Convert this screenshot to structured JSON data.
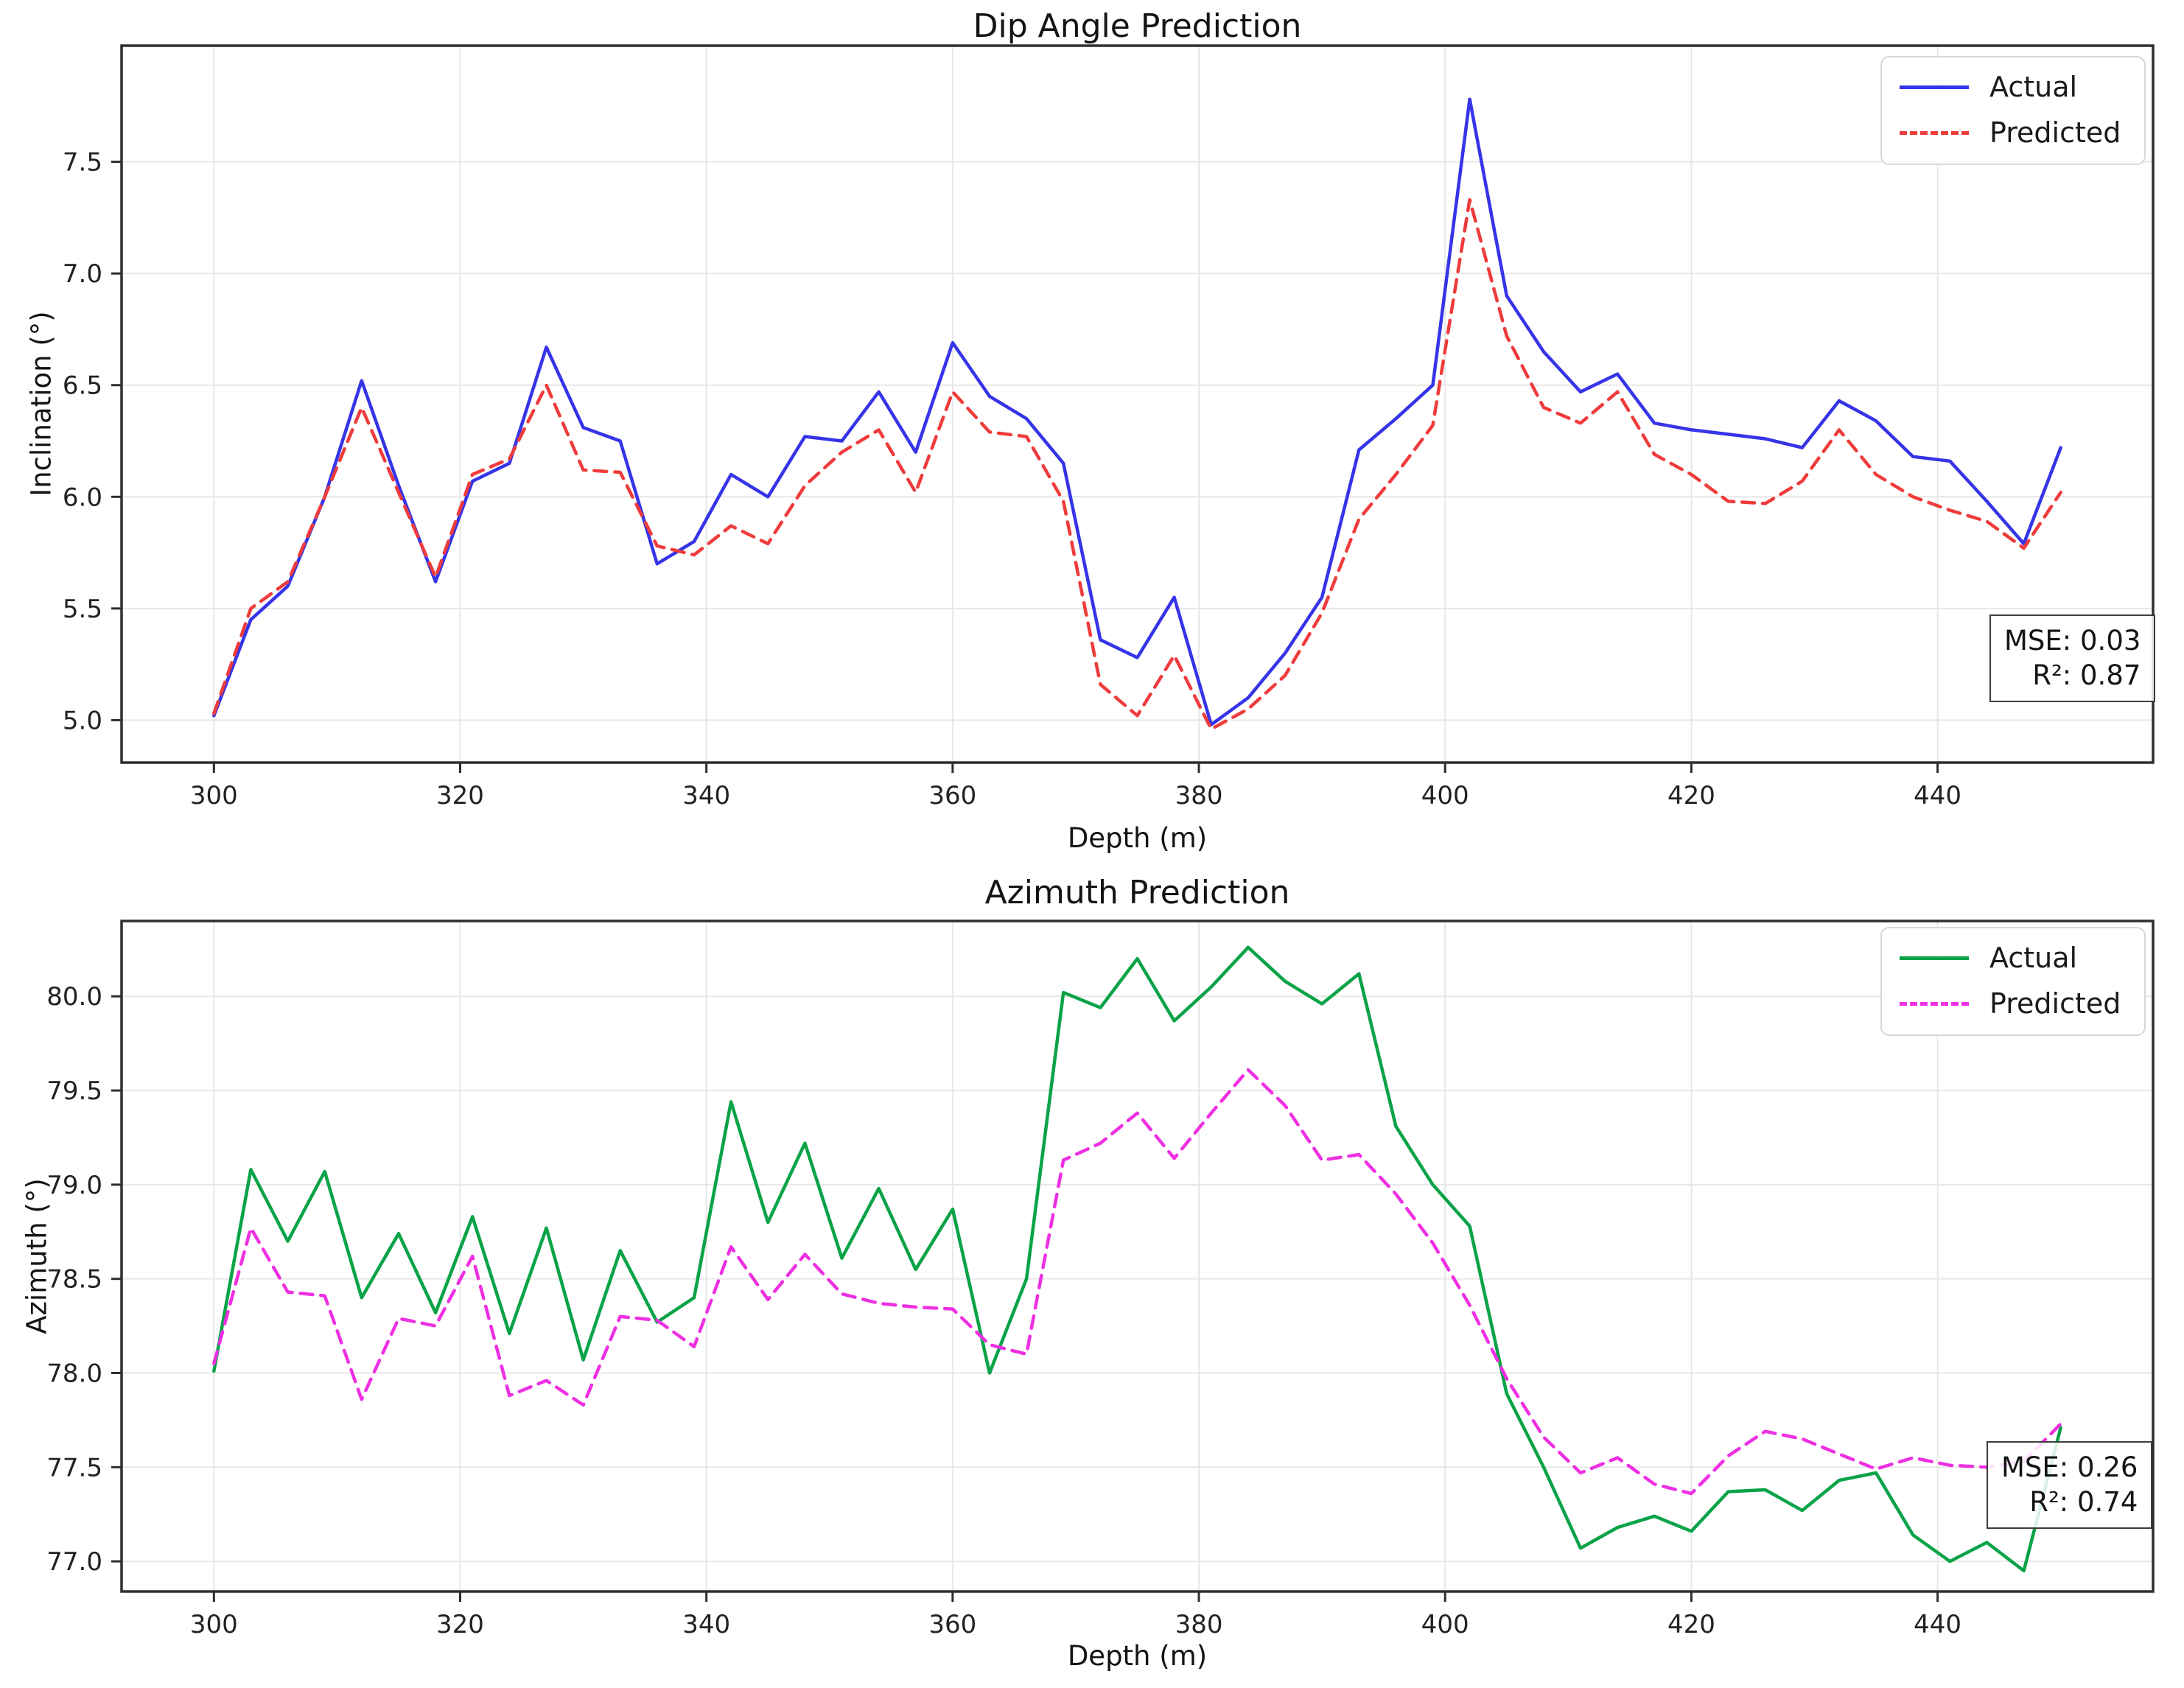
{
  "figure": {
    "background": "#ffffff",
    "grid_color": "#e7e7e7",
    "frame_color": "#2e2e2e",
    "tick_text_color": "#222222"
  },
  "chart_data": [
    {
      "type": "line",
      "title": "Dip Angle Prediction",
      "xlabel": "Depth (m)",
      "ylabel": "Inclination (°)",
      "grid": true,
      "legend_position": "upper right",
      "annotation": [
        "MSE: 0.03",
        "R²: 0.87"
      ],
      "xlim": [
        292.5,
        457.5
      ],
      "ylim": [
        4.81,
        8.02
      ],
      "xticks": [
        300,
        320,
        340,
        360,
        380,
        400,
        420,
        440
      ],
      "yticks": [
        "5.0",
        "5.5",
        "6.0",
        "6.5",
        "7.0",
        "7.5"
      ],
      "x": [
        300,
        303,
        306,
        309,
        312,
        315,
        318,
        321,
        324,
        327,
        330,
        333,
        336,
        339,
        342,
        345,
        348,
        351,
        354,
        357,
        360,
        363,
        366,
        369,
        372,
        375,
        378,
        381,
        384,
        387,
        390,
        393,
        396,
        399,
        402,
        405,
        408,
        411,
        414,
        417,
        420,
        423,
        426,
        429,
        432,
        435,
        438,
        441,
        444,
        447,
        450
      ],
      "series": [
        {
          "name": "Actual",
          "color": "#3634e8",
          "dash": "solid",
          "values": [
            5.02,
            5.45,
            5.6,
            6.0,
            6.52,
            6.05,
            5.62,
            6.07,
            6.15,
            6.67,
            6.31,
            6.25,
            5.7,
            5.8,
            6.1,
            6.0,
            6.27,
            6.25,
            6.47,
            6.2,
            6.69,
            6.45,
            6.35,
            6.15,
            5.36,
            5.28,
            5.55,
            4.98,
            5.1,
            5.3,
            5.55,
            6.21,
            6.35,
            6.5,
            7.78,
            6.9,
            6.65,
            6.47,
            6.55,
            6.33,
            6.3,
            6.28,
            6.26,
            6.22,
            6.43,
            6.34,
            6.18,
            6.16,
            5.98,
            5.79,
            6.22
          ]
        },
        {
          "name": "Predicted",
          "color": "#ef3b3b",
          "dash": "dashed",
          "values": [
            5.03,
            5.5,
            5.62,
            6.0,
            6.4,
            6.02,
            5.64,
            6.1,
            6.17,
            6.5,
            6.12,
            6.11,
            5.78,
            5.74,
            5.87,
            5.79,
            6.05,
            6.2,
            6.3,
            6.02,
            6.47,
            6.29,
            6.27,
            5.98,
            5.16,
            5.02,
            5.29,
            4.96,
            5.05,
            5.2,
            5.48,
            5.9,
            6.1,
            6.32,
            7.33,
            6.72,
            6.4,
            6.33,
            6.47,
            6.19,
            6.1,
            5.98,
            5.97,
            6.07,
            6.3,
            6.1,
            6.0,
            5.94,
            5.89,
            5.77,
            6.02
          ]
        }
      ]
    },
    {
      "type": "line",
      "title": "Azimuth Prediction",
      "xlabel": "Depth (m)",
      "ylabel": "Azimuth (°)",
      "grid": true,
      "legend_position": "upper right",
      "annotation": [
        "MSE: 0.26",
        "R²: 0.74"
      ],
      "xlim": [
        292.5,
        457.5
      ],
      "ylim": [
        76.84,
        80.4
      ],
      "xticks": [
        300,
        320,
        340,
        360,
        380,
        400,
        420,
        440
      ],
      "yticks": [
        "77.0",
        "77.5",
        "78.0",
        "78.5",
        "79.0",
        "79.5",
        "80.0"
      ],
      "x": [
        300,
        303,
        306,
        309,
        312,
        315,
        318,
        321,
        324,
        327,
        330,
        333,
        336,
        339,
        342,
        345,
        348,
        351,
        354,
        357,
        360,
        363,
        366,
        369,
        372,
        375,
        378,
        381,
        384,
        387,
        390,
        393,
        396,
        399,
        402,
        405,
        408,
        411,
        414,
        417,
        420,
        423,
        426,
        429,
        432,
        435,
        438,
        441,
        444,
        447,
        450
      ],
      "series": [
        {
          "name": "Actual",
          "color": "#0aa347",
          "dash": "solid",
          "values": [
            78.01,
            79.08,
            78.7,
            79.07,
            78.4,
            78.74,
            78.32,
            78.83,
            78.21,
            78.77,
            78.07,
            78.65,
            78.27,
            78.4,
            79.44,
            78.8,
            79.22,
            78.61,
            78.98,
            78.55,
            78.87,
            78.0,
            78.5,
            80.02,
            79.94,
            80.2,
            79.87,
            80.05,
            80.26,
            80.08,
            79.96,
            80.12,
            79.31,
            79.0,
            78.78,
            77.89,
            77.5,
            77.07,
            77.18,
            77.24,
            77.16,
            77.37,
            77.38,
            77.27,
            77.43,
            77.47,
            77.14,
            77.0,
            77.1,
            76.95,
            77.71
          ]
        },
        {
          "name": "Predicted",
          "color": "#ee2fe2",
          "dash": "dashed",
          "values": [
            78.05,
            78.77,
            78.43,
            78.41,
            77.86,
            78.29,
            78.25,
            78.62,
            77.88,
            77.96,
            77.83,
            78.3,
            78.28,
            78.14,
            78.67,
            78.39,
            78.63,
            78.42,
            78.37,
            78.35,
            78.34,
            78.15,
            78.1,
            79.13,
            79.22,
            79.38,
            79.14,
            79.38,
            79.61,
            79.42,
            79.13,
            79.16,
            78.95,
            78.69,
            78.36,
            77.97,
            77.66,
            77.47,
            77.55,
            77.41,
            77.36,
            77.56,
            77.69,
            77.65,
            77.57,
            77.49,
            77.55,
            77.51,
            77.5,
            77.53,
            77.73
          ]
        }
      ]
    }
  ]
}
